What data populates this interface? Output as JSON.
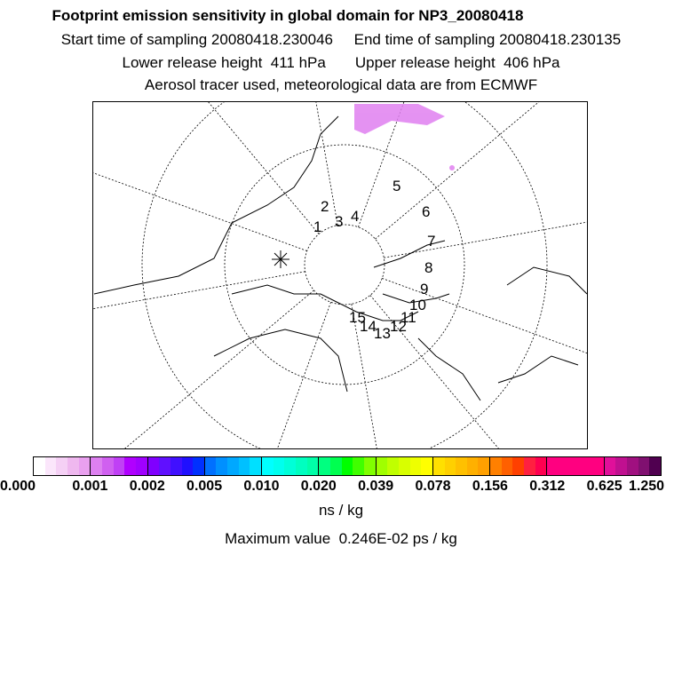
{
  "title": "Footprint emission sensitivity in global domain for NP3_20080418",
  "line2": "Start time of sampling 20080418.230046     End time of sampling 20080418.230135",
  "line3": "Lower release height  411 hPa       Upper release height  406 hPa",
  "line4": "Aerosol tracer used, meteorological data are from ECMWF",
  "map": {
    "labels": [
      "1",
      "2",
      "3",
      "4",
      "5",
      "6",
      "7",
      "8",
      "9",
      "10",
      "11",
      "12",
      "13",
      "14",
      "15"
    ],
    "release_marker": "asterisk-icon"
  },
  "colorbar": {
    "ticks": [
      "0.000",
      "0.001",
      "0.002",
      "0.005",
      "0.010",
      "0.020",
      "0.039",
      "0.078",
      "0.156",
      "0.312",
      "0.625",
      "1.250"
    ],
    "segments": [
      [
        "#ffffff",
        "#fbe6fb",
        "#f5d0f5",
        "#efb8ef",
        "#e9a0ef"
      ],
      [
        "#dd80f0",
        "#d060f0",
        "#c040f5",
        "#b000ff",
        "#a000ff"
      ],
      [
        "#8000ff",
        "#6010ff",
        "#4010ff",
        "#2010ff",
        "#0030ff"
      ],
      [
        "#0070ff",
        "#0090ff",
        "#00a8ff",
        "#00c0ff",
        "#00e0ff"
      ],
      [
        "#00ffff",
        "#00ffee",
        "#00ffd8",
        "#00ffc0",
        "#00ffa8"
      ],
      [
        "#00ff80",
        "#00ff50",
        "#00ff00",
        "#40ff00",
        "#80ff00"
      ],
      [
        "#a0ff00",
        "#c0ff00",
        "#d8ff00",
        "#eeff00",
        "#ffff00"
      ],
      [
        "#ffe000",
        "#ffd000",
        "#ffc000",
        "#ffb000",
        "#ffa000"
      ],
      [
        "#ff8000",
        "#ff6000",
        "#ff4000",
        "#ff2040",
        "#ff0050"
      ],
      [
        "#ff0080",
        "#ff0080",
        "#ff0080",
        "#ff0080",
        "#ff0080"
      ],
      [
        "#e0109a",
        "#c01090",
        "#a01080",
        "#801070",
        "#500050"
      ]
    ]
  },
  "unit": "ns / kg",
  "max_value": "Maximum value  0.246E-02 ps / kg"
}
